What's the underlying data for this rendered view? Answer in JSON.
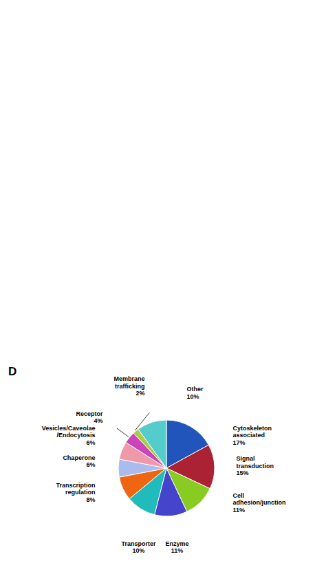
{
  "chart_data": {
    "type": "pie",
    "title": "D",
    "categories": [
      "Cytoskeleton\nassociated\n17%",
      "Signal\ntransduction\n15%",
      "Cell\nadhesion/junction\n11%",
      "Enzyme\n11%",
      "Transporter\n10%",
      "Transcription\nregulation\n8%",
      "Chaperone\n6%",
      "Vesicles/Caveolae\n/Endocytosis\n6%",
      "Receptor\n4%",
      "Membrane\ntrafficking\n2%",
      "Other\n10%"
    ],
    "values": [
      17,
      15,
      11,
      11,
      10,
      8,
      6,
      6,
      4,
      2,
      10
    ],
    "colors": [
      "#2255BB",
      "#AA2233",
      "#88CC22",
      "#4444CC",
      "#22BBBB",
      "#EE6611",
      "#AABBEE",
      "#EE99AA",
      "#CC44BB",
      "#AACC44",
      "#55CCCC"
    ]
  }
}
